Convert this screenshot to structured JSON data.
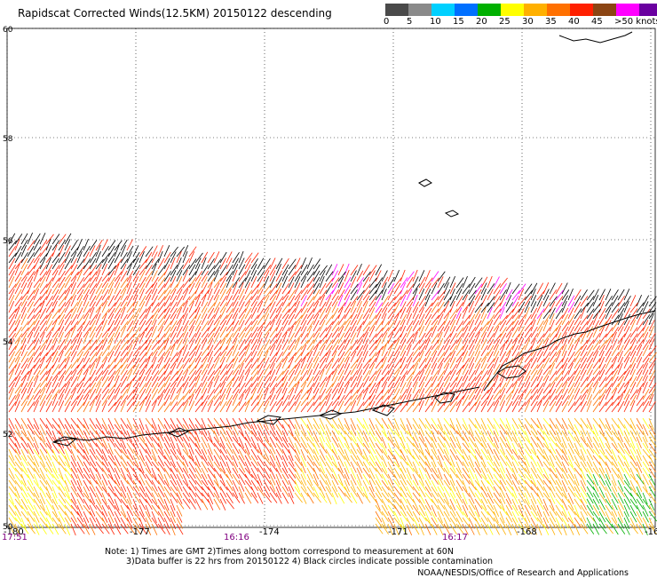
{
  "title": "Rapidscat Corrected Winds(12.5KM) 20150122 descending",
  "legend": {
    "labels": [
      "0",
      "5",
      "10",
      "15",
      "20",
      "25",
      "30",
      "35",
      "40",
      "45",
      ">50 knots"
    ],
    "colors": [
      "#4a4a4a",
      "#8a8a8a",
      "#00d0ff",
      "#0070ff",
      "#00b000",
      "#ffff00",
      "#ffb000",
      "#ff7000",
      "#ff2000",
      "#8b4513",
      "#ff00ff",
      "#6a00a0"
    ]
  },
  "map": {
    "lat_labels": [
      "60",
      "58",
      "56",
      "54",
      "52",
      "50"
    ],
    "lon_labels": [
      "-180",
      "-177",
      "-174",
      "-171",
      "-168",
      "-16"
    ],
    "time_labels": [
      "17:51",
      "16:16",
      "16:17"
    ]
  },
  "notes": {
    "line1": "Note: 1) Times are GMT 2)Times along bottom correspond to measurement at 60N",
    "line2": "3)Data buffer is 22 hrs from 20150122 4) Black circles indicate possible contamination"
  },
  "credit": "NOAA/NESDIS/Office of Research and Applications"
}
